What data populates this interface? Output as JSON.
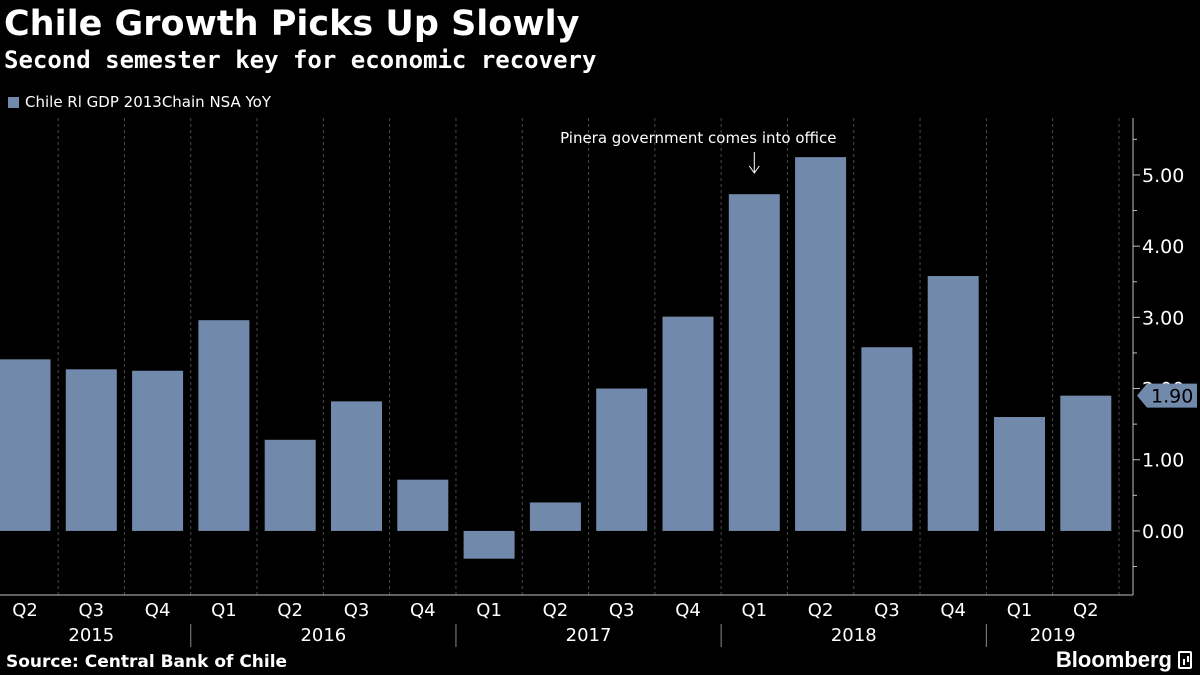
{
  "header": {
    "title": "Chile Growth Picks Up Slowly",
    "subtitle": "Second semester key for economic recovery"
  },
  "footer": {
    "source": "Source: Central Bank of Chile",
    "brand": "Bloomberg",
    "brand_icon": "bloomberg-chart-icon"
  },
  "chart_data": {
    "type": "bar",
    "series": [
      {
        "name": "Chile Rl GDP 2013Chain NSA YoY",
        "color": "#7189ab",
        "values": [
          2.41,
          2.27,
          2.25,
          2.96,
          1.28,
          1.82,
          0.72,
          -0.39,
          0.4,
          2.0,
          3.01,
          4.73,
          5.25,
          2.58,
          3.58,
          1.6,
          1.9
        ]
      }
    ],
    "categories": [
      "Q2",
      "Q3",
      "Q4",
      "Q1",
      "Q2",
      "Q3",
      "Q4",
      "Q1",
      "Q2",
      "Q3",
      "Q4",
      "Q1",
      "Q2",
      "Q3",
      "Q4",
      "Q1",
      "Q2"
    ],
    "year_groups": [
      {
        "label": "2015",
        "start": 0,
        "end": 2
      },
      {
        "label": "2016",
        "start": 3,
        "end": 6
      },
      {
        "label": "2017",
        "start": 7,
        "end": 10
      },
      {
        "label": "2018",
        "start": 11,
        "end": 14
      },
      {
        "label": "2019",
        "start": 15,
        "end": 16
      }
    ],
    "y_ticks": [
      "0.00",
      "1.00",
      "2.00",
      "3.00",
      "4.00",
      "5.00"
    ],
    "y_axis_side": "right",
    "ylim": [
      -0.9,
      5.8
    ],
    "grid": "vertical dashed between quarters",
    "last_value_label": "1.90",
    "annotation": {
      "text": "Pinera government comes into office",
      "category_index": 11
    }
  }
}
